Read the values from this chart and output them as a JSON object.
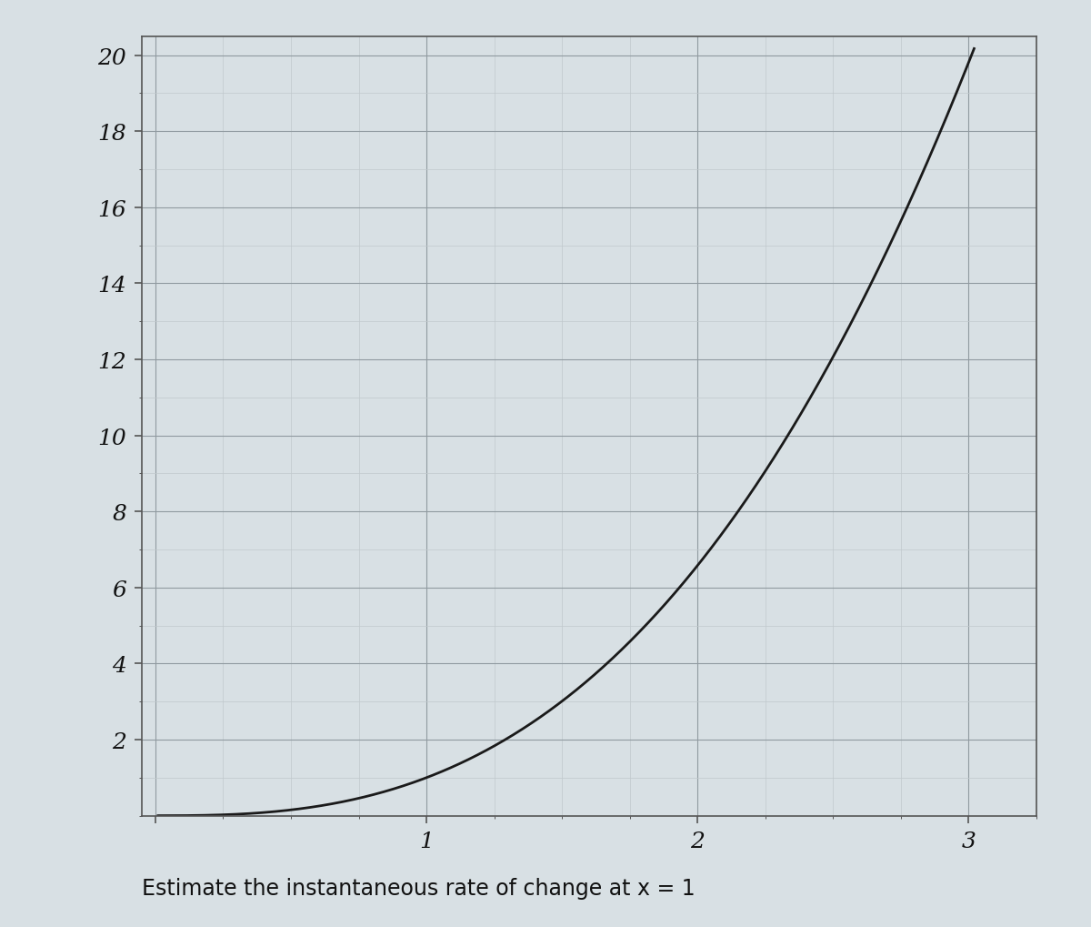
{
  "title": "",
  "xlabel": "",
  "ylabel": "",
  "xlim": [
    -0.05,
    3.25
  ],
  "ylim": [
    0,
    20.5
  ],
  "xticks": [
    1,
    2,
    3
  ],
  "yticks": [
    2,
    4,
    6,
    8,
    10,
    12,
    14,
    16,
    18,
    20
  ],
  "curve_color": "#1a1a1a",
  "curve_linewidth": 2.0,
  "grid_minor_color": "#c0c8cc",
  "grid_major_color": "#909aa0",
  "grid_minor_linewidth": 0.5,
  "grid_major_linewidth": 0.8,
  "background_color": "#d8e0e4",
  "axes_color": "#555555",
  "tick_label_fontsize": 18,
  "caption": "Estimate the instantaneous rate of change at x = 1",
  "caption_fontsize": 17,
  "x_start": 0.45,
  "x_end": 3.02,
  "a_exp": 2.95
}
